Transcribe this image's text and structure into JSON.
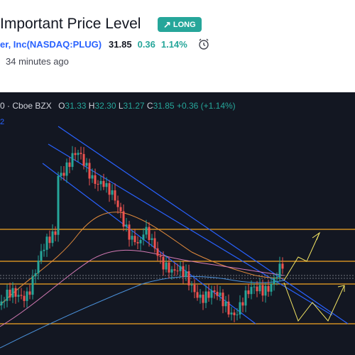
{
  "header": {
    "title": "Important Price Level",
    "badge_label": "LONG",
    "company": "er, Inc",
    "ticker_open": " (",
    "ticker": "NASDAQ:PLUG",
    "ticker_close": ")",
    "price": "31.85",
    "change": "0.36",
    "change_pct": "1.14%",
    "time_ago": "34 minutes ago"
  },
  "chart": {
    "legend": {
      "symbol_tail": "0",
      "exchange": "Cboe BZX",
      "open_label": "O",
      "open": "31.33",
      "high_label": "H",
      "high": "32.30",
      "low_label": "L",
      "low": "31.27",
      "close_label": "C",
      "close": "31.85",
      "change": "+0.36 (+1.14%)",
      "indicator_tail": "2"
    },
    "colors": {
      "background": "#131722",
      "up": "#26a69a",
      "down": "#ef5350",
      "level": "#f5a623",
      "channel": "#2962ff",
      "forecast": "#f5e663"
    }
  }
}
